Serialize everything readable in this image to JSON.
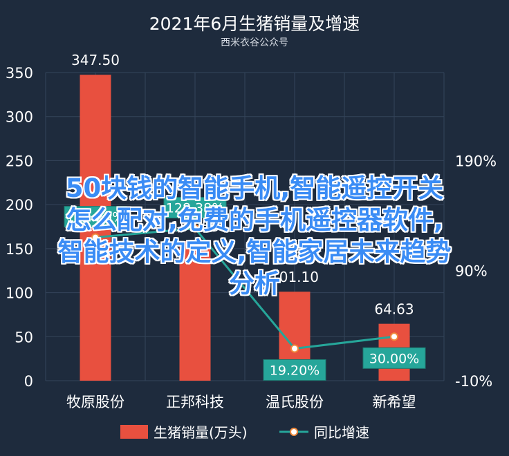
{
  "chart_data": {
    "type": "bar",
    "title": "2021年6月生猪销量及增速",
    "subtitle": "西米衣谷公众号",
    "categories": [
      "牧原股份",
      "正邦科技",
      "温氏股份",
      "新希望"
    ],
    "series": [
      {
        "name": "生猪销量(万头)",
        "type": "bar",
        "axis": "left",
        "values": [
          347.5,
          158.53,
          101.1,
          64.63
        ],
        "labels": [
          "347.50",
          "158.53",
          "101.10",
          "64.63"
        ]
      },
      {
        "name": "同比增速",
        "type": "line",
        "axis": "right",
        "values": [
          120.2,
          128.38,
          19.2,
          30.0
        ],
        "labels": [
          "120.20%",
          "128.38%",
          "19.20%",
          "30.00%"
        ]
      }
    ],
    "left_axis": {
      "ticks": [
        "0",
        "50",
        "100",
        "150",
        "200",
        "250",
        "300",
        "350"
      ],
      "ylim": [
        0,
        350
      ]
    },
    "right_axis": {
      "ticks": [
        "-10%",
        "90%",
        "190%"
      ],
      "ylim": [
        -10,
        270
      ]
    },
    "grid": true,
    "legend_position": "bottom",
    "colors": {
      "bar": "#e8503f",
      "line": "#26a69a",
      "background": "#1e2b3d",
      "text": "#ffffff"
    }
  },
  "overlay_text": [
    "50块钱的智能手机,智能遥控开关",
    "怎么配对,免费的手机遥控器软件,",
    "智能技术的定义,智能家居未来趋势",
    "分析"
  ]
}
